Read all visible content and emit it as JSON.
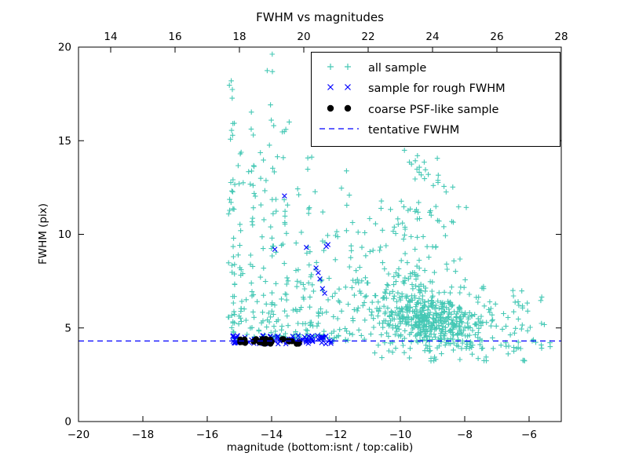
{
  "chart_data": {
    "type": "scatter",
    "title": "FWHM vs magnitudes",
    "xlabel": "magnitude (bottom:isnt / top:calib)",
    "ylabel": "FWHM (pix)",
    "xlim": [
      -20,
      -5
    ],
    "ylim": [
      0,
      20
    ],
    "top_xlim": [
      13,
      28
    ],
    "grid": false,
    "legend_position": "upper right",
    "frame_color": "#000000",
    "background_color": "#ffffff",
    "tentative_fwhm_value": 4.3,
    "xticks_bottom": {
      "values": [
        -20,
        -18,
        -16,
        -14,
        -12,
        -10,
        -8,
        -6
      ],
      "labels": [
        "−20",
        "−18",
        "−16",
        "−14",
        "−12",
        "−10",
        "−8",
        "−6"
      ]
    },
    "xticks_top": {
      "values": [
        14,
        16,
        18,
        20,
        22,
        24,
        26,
        28
      ],
      "labels": [
        "14",
        "16",
        "18",
        "20",
        "22",
        "24",
        "26",
        "28"
      ]
    },
    "yticks": {
      "values": [
        0,
        5,
        10,
        15,
        20
      ],
      "labels": [
        "0",
        "5",
        "10",
        "15",
        "20"
      ]
    },
    "series": [
      {
        "name": "all sample",
        "marker": "plus",
        "color": "#45c8b5",
        "clusters": [
          {
            "kind": "column",
            "x": -15.22,
            "xj": 0.07,
            "y0": 4.4,
            "y1": 19.5,
            "n": 42,
            "b": 1.35
          },
          {
            "kind": "column",
            "x": -14.95,
            "xj": 0.05,
            "y0": 4.5,
            "y1": 17.8,
            "n": 16,
            "b": 1.5
          },
          {
            "kind": "column",
            "x": -14.6,
            "xj": 0.06,
            "y0": 4.5,
            "y1": 18.2,
            "n": 26,
            "b": 1.45
          },
          {
            "kind": "column",
            "x": -14.25,
            "xj": 0.06,
            "y0": 4.4,
            "y1": 14.5,
            "n": 18,
            "b": 1.5
          },
          {
            "kind": "column",
            "x": -13.95,
            "xj": 0.07,
            "y0": 4.4,
            "y1": 19.7,
            "n": 34,
            "b": 1.35
          },
          {
            "kind": "column",
            "x": -13.55,
            "xj": 0.07,
            "y0": 4.4,
            "y1": 16.2,
            "n": 26,
            "b": 1.4
          },
          {
            "kind": "column",
            "x": -13.2,
            "xj": 0.07,
            "y0": 4.4,
            "y1": 13.0,
            "n": 18,
            "b": 1.5
          },
          {
            "kind": "column",
            "x": -12.8,
            "xj": 0.08,
            "y0": 4.4,
            "y1": 14.8,
            "n": 22,
            "b": 1.45
          },
          {
            "kind": "column",
            "x": -12.4,
            "xj": 0.08,
            "y0": 4.4,
            "y1": 12.4,
            "n": 16,
            "b": 1.5
          },
          {
            "kind": "column",
            "x": -12.0,
            "xj": 0.09,
            "y0": 4.3,
            "y1": 10.5,
            "n": 14,
            "b": 1.5
          },
          {
            "kind": "column",
            "x": -11.55,
            "xj": 0.1,
            "y0": 4.3,
            "y1": 13.6,
            "n": 16,
            "b": 1.6
          },
          {
            "kind": "column",
            "x": -11.15,
            "xj": 0.1,
            "y0": 4.3,
            "y1": 11.0,
            "n": 12,
            "b": 1.6
          },
          {
            "kind": "band",
            "x0": -15.3,
            "x1": -12.2,
            "y0": 4.4,
            "y1": 6.6,
            "n": 55,
            "b": 2.0
          },
          {
            "kind": "band",
            "x0": -13.1,
            "x1": -11.2,
            "y0": 4.3,
            "y1": 8.5,
            "n": 40,
            "b": 1.4
          },
          {
            "kind": "gauss",
            "cx": -9.6,
            "cy": 5.8,
            "sx": 0.75,
            "sy": 0.9,
            "n": 300,
            "ymin": 3.6,
            "ymax": 9.0,
            "xmax": -5.3
          },
          {
            "kind": "gauss",
            "cx": -8.6,
            "cy": 5.2,
            "sx": 0.7,
            "sy": 0.7,
            "n": 220,
            "ymin": 3.6,
            "ymax": 7.5,
            "xmax": -5.3
          },
          {
            "kind": "gauss",
            "cx": -9.5,
            "cy": 9.5,
            "sx": 0.7,
            "sy": 1.6,
            "n": 85,
            "ymin": 6.8,
            "ymax": 14.6,
            "xmax": -6.5
          },
          {
            "kind": "gauss",
            "cx": -9.25,
            "cy": 13.6,
            "sx": 0.38,
            "sy": 0.6,
            "n": 16,
            "ymin": 12.4,
            "ymax": 14.7,
            "xmax": -6.0
          },
          {
            "kind": "band",
            "x0": -8.2,
            "x1": -6.2,
            "y0": 3.9,
            "y1": 7.2,
            "n": 55,
            "b": 2.1
          },
          {
            "kind": "band",
            "x0": -6.4,
            "x1": -5.3,
            "y0": 3.9,
            "y1": 7.2,
            "n": 20,
            "b": 2.3
          },
          {
            "kind": "band",
            "x0": -10.6,
            "x1": -6.0,
            "y0": 3.2,
            "y1": 4.1,
            "n": 26,
            "b": 1.0
          }
        ]
      },
      {
        "name": "sample for rough FWHM",
        "marker": "x",
        "color": "#0000ff",
        "clusters": [
          {
            "kind": "band",
            "x0": -15.25,
            "x1": -12.1,
            "y0": 4.15,
            "y1": 4.6,
            "n": 90,
            "b": 1.0
          }
        ],
        "points": [
          [
            -13.6,
            12.05
          ],
          [
            -13.9,
            9.2
          ],
          [
            -12.92,
            9.3
          ],
          [
            -12.3,
            9.35
          ],
          [
            -12.25,
            9.45
          ],
          [
            -12.62,
            8.2
          ],
          [
            -12.55,
            7.95
          ],
          [
            -12.5,
            7.62
          ],
          [
            -12.42,
            7.1
          ],
          [
            -12.35,
            6.85
          ]
        ]
      },
      {
        "name": "coarse PSF-like sample",
        "marker": "dot",
        "color": "#000000",
        "clusters": [
          {
            "kind": "band",
            "x0": -15.0,
            "x1": -13.05,
            "y0": 4.15,
            "y1": 4.42,
            "n": 34,
            "b": 1.0
          }
        ]
      },
      {
        "name": "tentative FWHM",
        "kind": "hline",
        "y": 4.3,
        "color": "#0000ff",
        "style": "dashed"
      }
    ]
  }
}
